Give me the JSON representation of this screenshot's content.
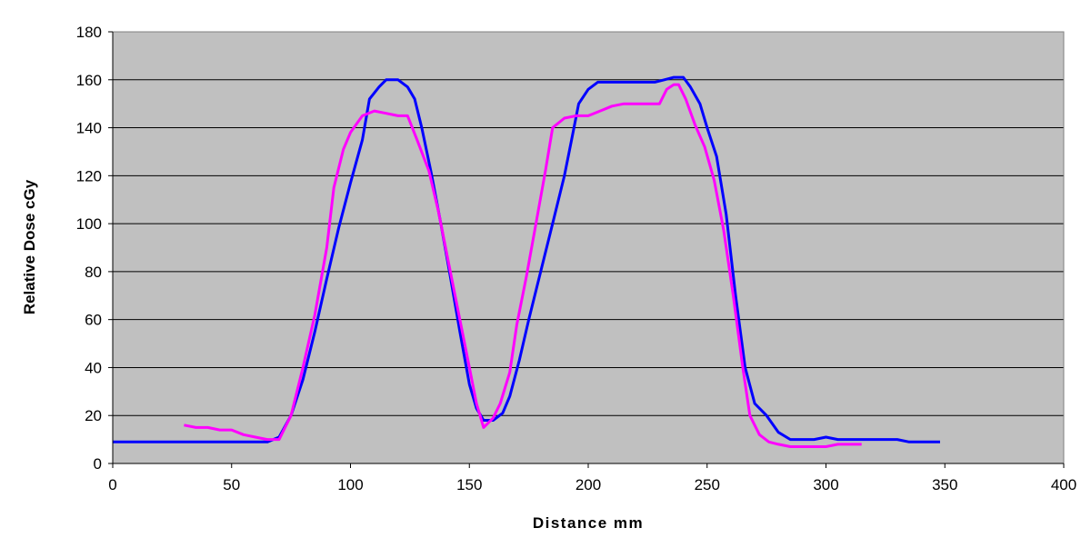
{
  "chart_data": {
    "type": "line",
    "title": "",
    "xlabel": "Distance mm",
    "ylabel": "Relative Dose cGy",
    "xlim": [
      0,
      400
    ],
    "ylim": [
      0,
      180
    ],
    "x_ticks": [
      0,
      50,
      100,
      150,
      200,
      250,
      300,
      350,
      400
    ],
    "y_ticks": [
      0,
      20,
      40,
      60,
      80,
      100,
      120,
      140,
      160,
      180
    ],
    "grid": "horizontal",
    "background": "#c0c0c0",
    "legend": "none",
    "series": [
      {
        "color": "#0000ff",
        "points": [
          [
            0,
            9
          ],
          [
            20,
            9
          ],
          [
            40,
            9
          ],
          [
            60,
            9
          ],
          [
            65,
            9
          ],
          [
            70,
            11
          ],
          [
            75,
            20
          ],
          [
            80,
            35
          ],
          [
            85,
            55
          ],
          [
            90,
            77
          ],
          [
            95,
            98
          ],
          [
            100,
            117
          ],
          [
            105,
            135
          ],
          [
            108,
            152
          ],
          [
            112,
            157
          ],
          [
            115,
            160
          ],
          [
            120,
            160
          ],
          [
            124,
            157
          ],
          [
            127,
            152
          ],
          [
            130,
            140
          ],
          [
            134,
            121
          ],
          [
            138,
            100
          ],
          [
            142,
            78
          ],
          [
            146,
            55
          ],
          [
            150,
            33
          ],
          [
            153,
            23
          ],
          [
            156,
            18
          ],
          [
            160,
            18
          ],
          [
            164,
            21
          ],
          [
            167,
            28
          ],
          [
            171,
            43
          ],
          [
            175,
            60
          ],
          [
            180,
            80
          ],
          [
            185,
            100
          ],
          [
            190,
            120
          ],
          [
            193,
            135
          ],
          [
            196,
            150
          ],
          [
            200,
            156
          ],
          [
            204,
            159
          ],
          [
            210,
            159
          ],
          [
            220,
            159
          ],
          [
            228,
            159
          ],
          [
            232,
            160
          ],
          [
            236,
            161
          ],
          [
            240,
            161
          ],
          [
            243,
            157
          ],
          [
            247,
            150
          ],
          [
            250,
            140
          ],
          [
            254,
            128
          ],
          [
            258,
            104
          ],
          [
            262,
            70
          ],
          [
            266,
            40
          ],
          [
            270,
            25
          ],
          [
            275,
            20
          ],
          [
            280,
            13
          ],
          [
            285,
            10
          ],
          [
            290,
            10
          ],
          [
            295,
            10
          ],
          [
            300,
            11
          ],
          [
            305,
            10
          ],
          [
            310,
            10
          ],
          [
            320,
            10
          ],
          [
            330,
            10
          ],
          [
            335,
            9
          ],
          [
            340,
            9
          ],
          [
            348,
            9
          ]
        ]
      },
      {
        "color": "#ff00ff",
        "points": [
          [
            30,
            16
          ],
          [
            35,
            15
          ],
          [
            40,
            15
          ],
          [
            45,
            14
          ],
          [
            50,
            14
          ],
          [
            55,
            12
          ],
          [
            60,
            11
          ],
          [
            65,
            10
          ],
          [
            70,
            10
          ],
          [
            75,
            20
          ],
          [
            80,
            40
          ],
          [
            85,
            62
          ],
          [
            90,
            90
          ],
          [
            93,
            115
          ],
          [
            97,
            131
          ],
          [
            100,
            138
          ],
          [
            105,
            145
          ],
          [
            110,
            147
          ],
          [
            115,
            146
          ],
          [
            120,
            145
          ],
          [
            124,
            145
          ],
          [
            128,
            135
          ],
          [
            133,
            122
          ],
          [
            137,
            105
          ],
          [
            141,
            85
          ],
          [
            145,
            65
          ],
          [
            150,
            40
          ],
          [
            153,
            25
          ],
          [
            156,
            15
          ],
          [
            160,
            19
          ],
          [
            163,
            25
          ],
          [
            167,
            38
          ],
          [
            170,
            58
          ],
          [
            174,
            78
          ],
          [
            178,
            100
          ],
          [
            182,
            122
          ],
          [
            185,
            140
          ],
          [
            190,
            144
          ],
          [
            195,
            145
          ],
          [
            200,
            145
          ],
          [
            205,
            147
          ],
          [
            210,
            149
          ],
          [
            215,
            150
          ],
          [
            220,
            150
          ],
          [
            225,
            150
          ],
          [
            230,
            150
          ],
          [
            233,
            156
          ],
          [
            236,
            158
          ],
          [
            238,
            158
          ],
          [
            241,
            152
          ],
          [
            245,
            141
          ],
          [
            249,
            132
          ],
          [
            253,
            118
          ],
          [
            257,
            97
          ],
          [
            261,
            70
          ],
          [
            265,
            40
          ],
          [
            268,
            20
          ],
          [
            272,
            12
          ],
          [
            276,
            9
          ],
          [
            280,
            8
          ],
          [
            285,
            7
          ],
          [
            290,
            7
          ],
          [
            295,
            7
          ],
          [
            300,
            7
          ],
          [
            305,
            8
          ],
          [
            310,
            8
          ],
          [
            315,
            8
          ]
        ]
      }
    ]
  }
}
